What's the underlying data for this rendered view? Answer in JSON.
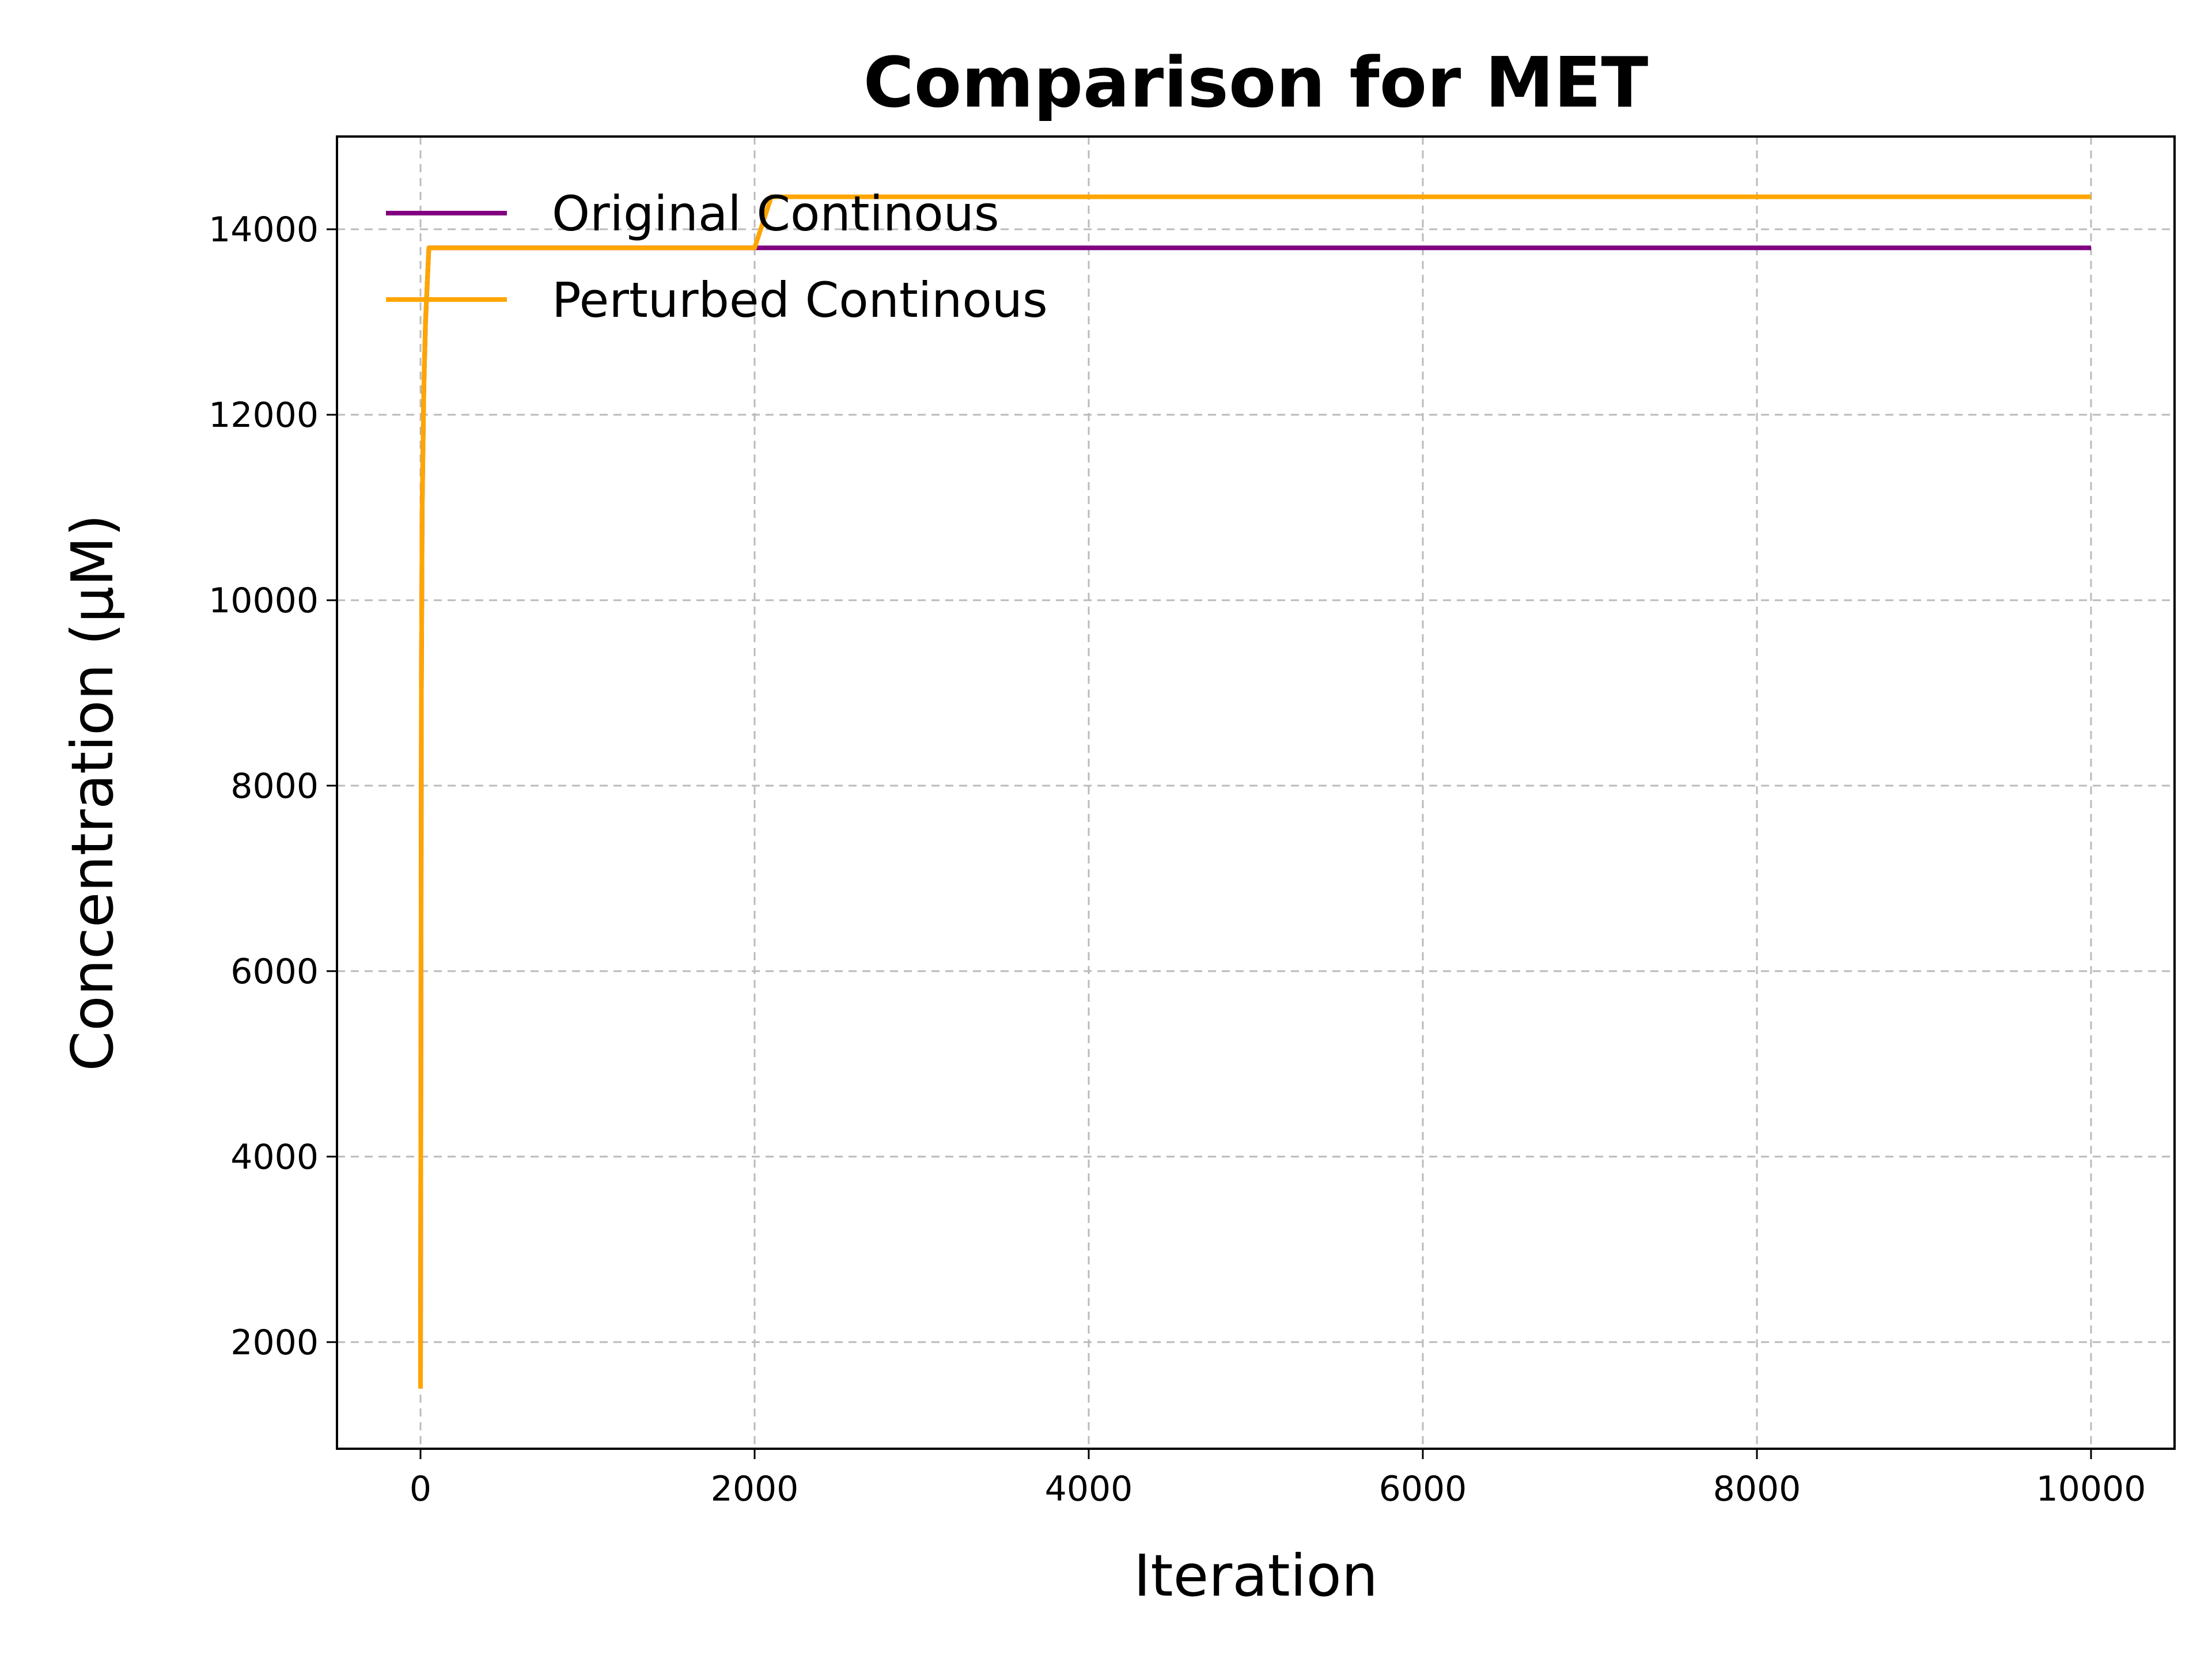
{
  "chart_data": {
    "type": "line",
    "title": "Comparison for MET",
    "xlabel": "Iteration",
    "ylabel": "Concentration (μM)",
    "xlim": [
      -500,
      10500
    ],
    "ylim": [
      850,
      15000
    ],
    "xticks": [
      0,
      2000,
      4000,
      6000,
      8000,
      10000
    ],
    "yticks": [
      2000,
      4000,
      6000,
      8000,
      10000,
      12000,
      14000
    ],
    "grid": true,
    "legend_position": "upper-left",
    "series": [
      {
        "name": "Original Continous",
        "color": "#800080",
        "x": [
          0,
          5,
          10,
          20,
          30,
          50,
          100,
          1000,
          2000,
          4000,
          6000,
          8000,
          10000
        ],
        "y": [
          1500,
          9000,
          11000,
          12300,
          13000,
          13800,
          13800,
          13800,
          13800,
          13800,
          13800,
          13800,
          13800
        ]
      },
      {
        "name": "Perturbed Continous",
        "color": "#FFA500",
        "x": [
          0,
          5,
          10,
          20,
          30,
          50,
          100,
          1000,
          2000,
          2100,
          4000,
          6000,
          8000,
          10000
        ],
        "y": [
          1500,
          9000,
          11000,
          12300,
          13000,
          13800,
          13800,
          13800,
          13800,
          14350,
          14350,
          14350,
          14350,
          14350
        ]
      }
    ]
  }
}
